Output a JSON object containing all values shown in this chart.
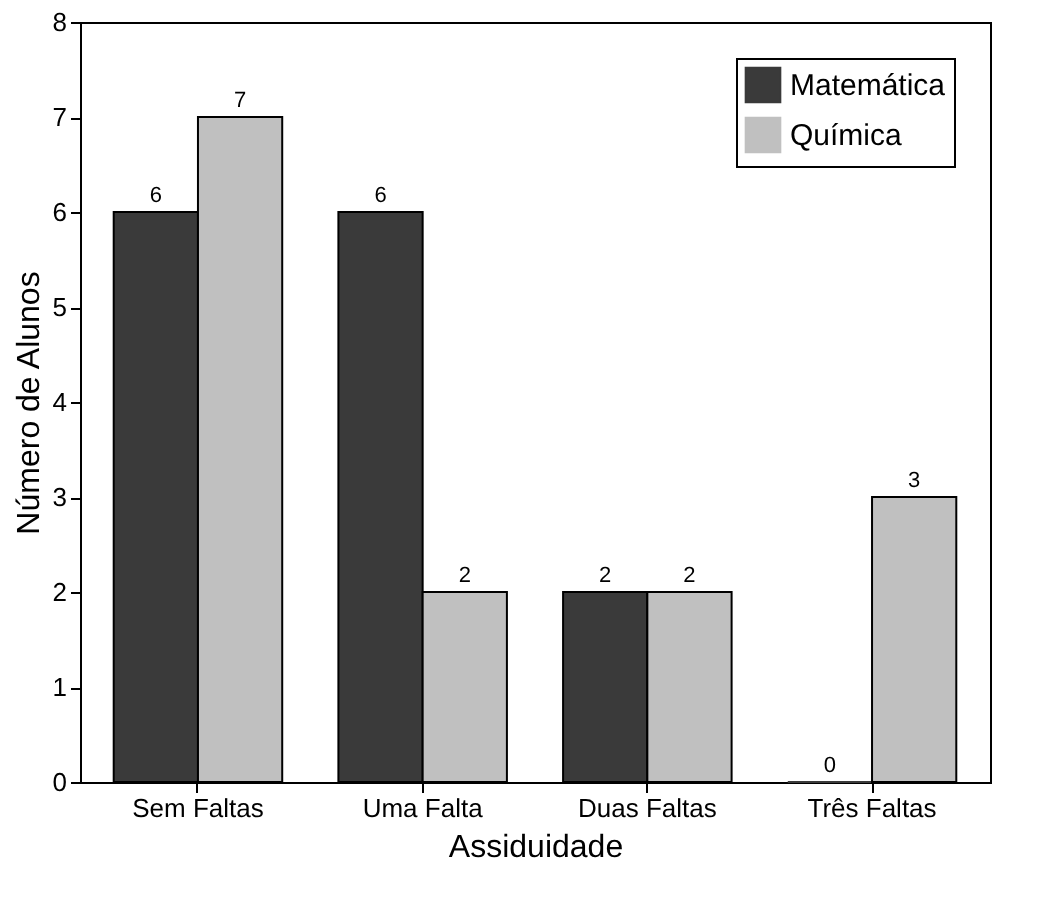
{
  "chart_data": {
    "type": "bar",
    "xlabel": "Assiduidade",
    "ylabel": "Número de Alunos",
    "categories": [
      "Sem Faltas",
      "Uma Falta",
      "Duas Faltas",
      "Três Faltas"
    ],
    "series": [
      {
        "name": "Matemática",
        "color": "#3a3a3a",
        "values": [
          6,
          6,
          2,
          0
        ]
      },
      {
        "name": "Química",
        "color": "#c0c0c0",
        "values": [
          7,
          2,
          2,
          3
        ]
      }
    ],
    "ylim": [
      0,
      8
    ],
    "yticks": [
      0,
      1,
      2,
      3,
      4,
      5,
      6,
      7,
      8
    ],
    "data_labels": true,
    "legend": "top right",
    "grid": false
  }
}
